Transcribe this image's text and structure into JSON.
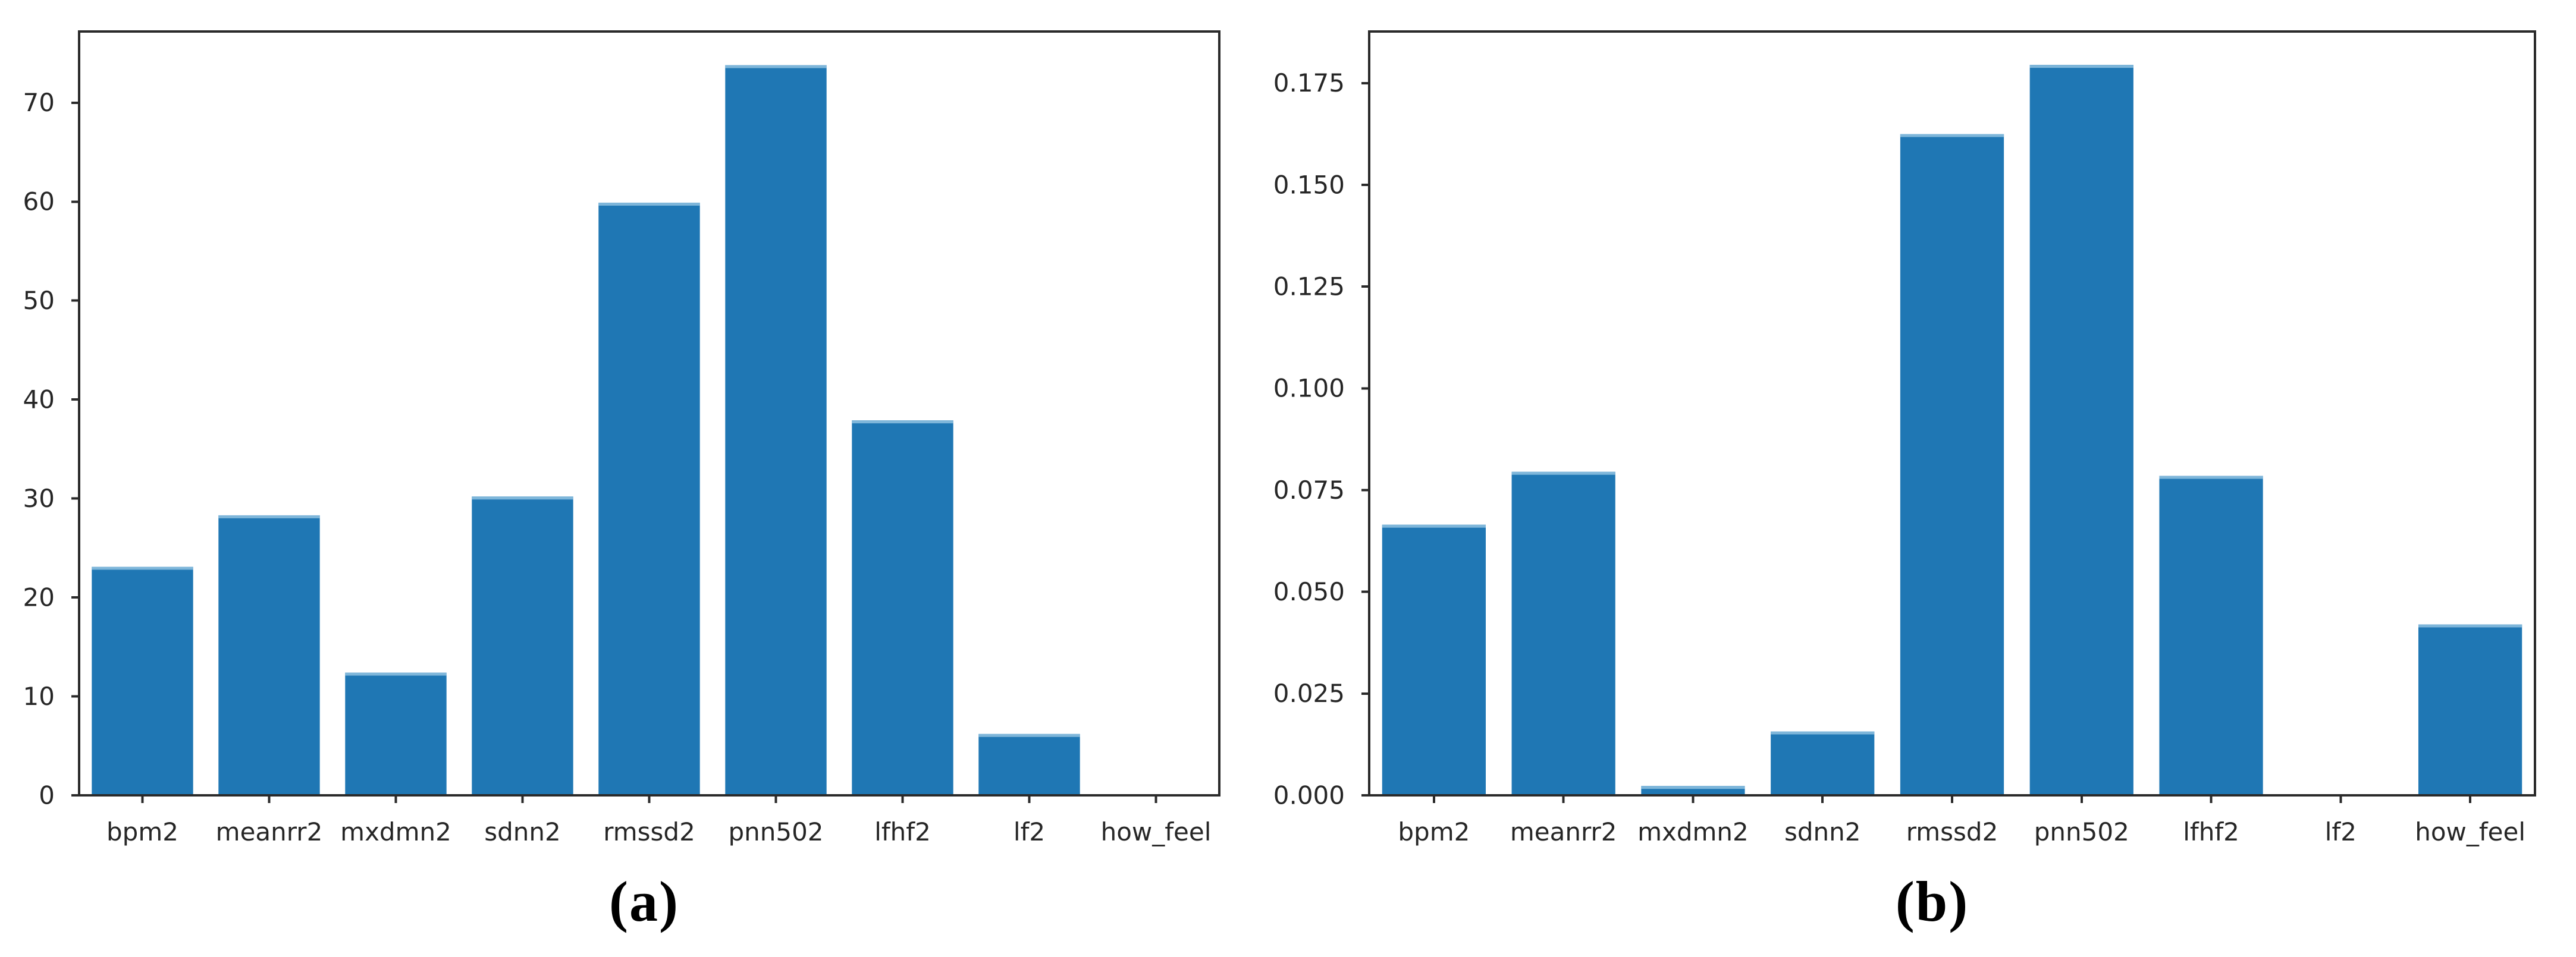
{
  "figure": {
    "background": "#ffffff",
    "bar_color": "#1f77b4",
    "bar_cap_color": "#8fc1e1",
    "axis_color": "#2a2a2a",
    "label_color": "#262626"
  },
  "captions": {
    "a": "(a)",
    "b": "(b)"
  },
  "chart_data": [
    {
      "id": "a",
      "type": "bar",
      "title": "",
      "xlabel": "",
      "ylabel": "",
      "caption": "(a)",
      "categories": [
        "bpm2",
        "meanrr2",
        "mxdmn2",
        "sdnn2",
        "rmssd2",
        "pnn502",
        "lfhf2",
        "lf2",
        "how_feel"
      ],
      "values": [
        23.1,
        28.3,
        12.4,
        30.2,
        59.9,
        73.8,
        37.9,
        6.2,
        0.0
      ],
      "ylim": [
        0,
        77.2
      ],
      "y_ticks": {
        "values": [
          0,
          10,
          20,
          30,
          40,
          50,
          60,
          70
        ],
        "labels": [
          "0",
          "10",
          "20",
          "30",
          "40",
          "50",
          "60",
          "70"
        ]
      },
      "grid": false,
      "legend_position": "none",
      "bar_width_fraction": 0.8
    },
    {
      "id": "b",
      "type": "bar",
      "title": "",
      "xlabel": "",
      "ylabel": "",
      "caption": "(b)",
      "categories": [
        "bpm2",
        "meanrr2",
        "mxdmn2",
        "sdnn2",
        "rmssd2",
        "pnn502",
        "lfhf2",
        "lf2",
        "how_feel"
      ],
      "values": [
        0.0665,
        0.0795,
        0.0023,
        0.0157,
        0.1625,
        0.1795,
        0.0785,
        0.0,
        0.042
      ],
      "ylim": [
        0,
        0.1877
      ],
      "y_ticks": {
        "values": [
          0.0,
          0.025,
          0.05,
          0.075,
          0.1,
          0.125,
          0.15,
          0.175
        ],
        "labels": [
          "0.000",
          "0.025",
          "0.050",
          "0.075",
          "0.100",
          "0.125",
          "0.150",
          "0.175"
        ]
      },
      "grid": false,
      "legend_position": "none",
      "bar_width_fraction": 0.8
    }
  ]
}
